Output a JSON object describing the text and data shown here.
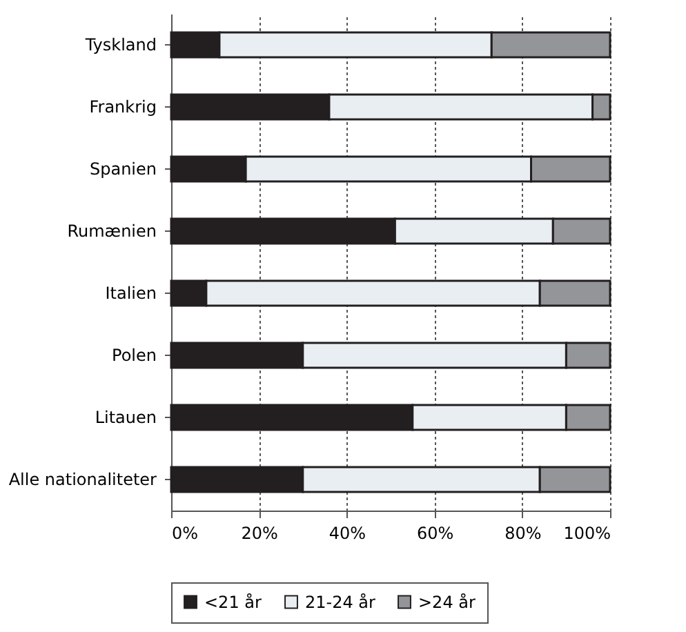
{
  "chart_data": {
    "type": "bar",
    "orientation": "horizontal",
    "stacked": true,
    "categories": [
      "Tyskland",
      "Frankrig",
      "Spanien",
      "Rumænien",
      "Italien",
      "Polen",
      "Litauen",
      "Alle nationaliteter"
    ],
    "series": [
      {
        "name": "<21 år",
        "color": "#231f20",
        "values": [
          11,
          36,
          17,
          51,
          8,
          30,
          55,
          30
        ]
      },
      {
        "name": "21-24 år",
        "color": "#e9eef2",
        "values": [
          62,
          60,
          65,
          36,
          76,
          60,
          35,
          54
        ]
      },
      {
        "name": ">24 år",
        "color": "#939598",
        "values": [
          27,
          4,
          18,
          13,
          16,
          10,
          10,
          16
        ]
      }
    ],
    "xlim": [
      0,
      100
    ],
    "xticks": [
      {
        "value": 0,
        "label": "0%"
      },
      {
        "value": 20,
        "label": "20%"
      },
      {
        "value": 40,
        "label": "40%"
      },
      {
        "value": 60,
        "label": "60%"
      },
      {
        "value": 80,
        "label": "80%"
      },
      {
        "value": 100,
        "label": "100%"
      }
    ],
    "grid": "x",
    "legend": "bottom"
  }
}
